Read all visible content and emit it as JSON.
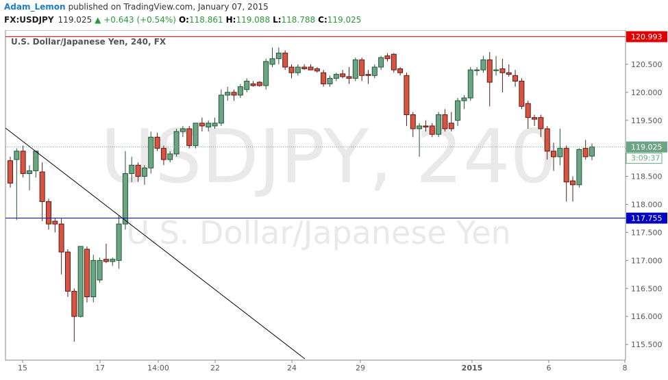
{
  "header": {
    "author": "Adam_Lemon",
    "published": "published on TradingView.com, January 07, 2015",
    "symbol": "FX:USDJPY",
    "last": "119.025",
    "change": "▲ +0.643 (+0.54%)",
    "o_label": "O:",
    "o": "118.861",
    "h_label": "H:",
    "h": "119.088",
    "l_label": "L:",
    "l": "118.788",
    "c_label": "C:",
    "c": "119.025"
  },
  "chart_data": {
    "type": "candlestick",
    "title": "U.S. Dollar/Japanese Yen, 240, FX",
    "watermark": "USDJPY, 240",
    "watermark_sub": "U.S. Dollar/Japanese Yen",
    "up_color": "#6ba583",
    "up_border": "#225437",
    "down_color": "#d75442",
    "down_border": "#5b1a13",
    "series": {
      "open": [
        118.78,
        118.8,
        118.95,
        118.55,
        118.6,
        118.58,
        118.05,
        117.7,
        117.65,
        117.15,
        116.45,
        116.0,
        117.2,
        116.35,
        116.65,
        117.02,
        116.98,
        117.0,
        117.65,
        118.55,
        118.7,
        118.5,
        118.65,
        119.2,
        119.0,
        118.8,
        118.9,
        119.3,
        119.35,
        119.05,
        119.45,
        119.38,
        119.4,
        119.45,
        119.95,
        120.0,
        119.95,
        120.05,
        120.15,
        120.18,
        120.12,
        120.5,
        120.6,
        120.7,
        120.45,
        120.35,
        120.45,
        120.45,
        120.42,
        120.35,
        120.15,
        120.25,
        120.33,
        120.28,
        120.25,
        120.58,
        120.32,
        120.3,
        120.45,
        120.65,
        120.68,
        120.42,
        120.3,
        119.6,
        119.35,
        119.4,
        119.4,
        119.25,
        119.6,
        119.45,
        119.5,
        119.85,
        119.9,
        120.4,
        120.4,
        120.58,
        120.4,
        120.42,
        120.35,
        120.3,
        120.2,
        119.8,
        119.55,
        119.55,
        119.35,
        118.95,
        118.85,
        119.0,
        118.42,
        118.35,
        119.0,
        118.861
      ],
      "high": [
        118.85,
        119.0,
        119.05,
        118.7,
        118.95,
        118.75,
        118.1,
        117.75,
        117.75,
        117.2,
        116.5,
        117.25,
        117.25,
        117.1,
        117.05,
        117.3,
        117.05,
        117.8,
        118.95,
        118.85,
        118.75,
        118.7,
        119.3,
        119.28,
        119.05,
        118.95,
        119.35,
        119.4,
        119.4,
        119.45,
        119.55,
        119.5,
        119.55,
        120.05,
        120.1,
        120.05,
        120.15,
        120.25,
        120.2,
        120.2,
        120.6,
        120.8,
        120.8,
        120.75,
        120.5,
        120.5,
        120.5,
        120.5,
        120.45,
        120.4,
        120.3,
        120.35,
        120.4,
        120.45,
        120.62,
        120.62,
        120.4,
        120.5,
        120.65,
        120.7,
        120.7,
        120.45,
        120.35,
        119.65,
        119.45,
        119.5,
        119.45,
        119.65,
        119.7,
        119.65,
        119.9,
        119.95,
        120.45,
        120.45,
        120.65,
        120.72,
        120.65,
        120.6,
        120.5,
        120.4,
        120.25,
        119.85,
        119.6,
        119.6,
        119.4,
        119.1,
        119.35,
        119.05,
        118.5,
        119.0,
        119.15,
        119.088
      ],
      "low": [
        118.3,
        117.72,
        118.48,
        118.25,
        118.48,
        117.7,
        117.55,
        117.5,
        116.75,
        116.35,
        115.55,
        115.98,
        116.25,
        116.25,
        116.6,
        116.95,
        116.9,
        116.85,
        117.55,
        118.4,
        118.4,
        118.35,
        118.55,
        118.95,
        118.7,
        118.75,
        118.85,
        119.2,
        119.0,
        119.0,
        119.3,
        119.3,
        119.35,
        119.4,
        119.85,
        119.85,
        119.9,
        120.0,
        120.1,
        120.1,
        120.05,
        120.45,
        120.5,
        120.4,
        120.25,
        120.3,
        120.4,
        120.4,
        120.35,
        120.1,
        120.1,
        120.2,
        120.25,
        120.15,
        120.2,
        120.2,
        120.15,
        120.25,
        120.4,
        120.55,
        120.35,
        120.3,
        119.4,
        119.2,
        118.85,
        119.3,
        119.2,
        119.2,
        119.3,
        119.3,
        119.4,
        119.7,
        119.85,
        120.3,
        120.35,
        119.75,
        120.3,
        120.0,
        120.28,
        120.1,
        119.7,
        119.35,
        119.4,
        119.2,
        118.8,
        118.6,
        118.7,
        118.05,
        118.05,
        118.3,
        118.8,
        118.788
      ],
      "close": [
        118.38,
        118.95,
        118.55,
        118.6,
        118.95,
        118.05,
        117.65,
        117.65,
        117.15,
        116.45,
        116.0,
        117.25,
        116.35,
        117.0,
        117.0,
        116.98,
        117.02,
        117.65,
        118.55,
        118.7,
        118.5,
        118.65,
        119.2,
        119.0,
        118.8,
        118.9,
        119.3,
        119.35,
        119.05,
        119.45,
        119.4,
        119.45,
        119.45,
        119.95,
        120.0,
        119.95,
        120.1,
        120.2,
        120.12,
        120.12,
        120.55,
        120.6,
        120.7,
        120.45,
        120.35,
        120.45,
        120.42,
        120.4,
        120.38,
        120.15,
        120.25,
        120.32,
        120.28,
        120.25,
        120.58,
        120.3,
        120.3,
        120.45,
        120.62,
        120.6,
        120.4,
        120.35,
        119.6,
        119.35,
        119.4,
        119.38,
        119.25,
        119.6,
        119.35,
        119.35,
        119.85,
        119.9,
        120.4,
        120.4,
        120.58,
        120.18,
        120.4,
        120.35,
        120.32,
        120.2,
        119.75,
        119.55,
        119.52,
        119.35,
        118.95,
        118.85,
        119.0,
        118.4,
        118.35,
        118.98,
        118.85,
        119.025
      ]
    },
    "xlim": [
      -0.75,
      96.25
    ],
    "ylim": [
      115.22,
      121.11
    ],
    "xticks": [
      {
        "value": 1.93,
        "label": "15"
      },
      {
        "value": 14.04,
        "label": "17"
      },
      {
        "value": 23.15,
        "label": "14:00"
      },
      {
        "value": 32.05,
        "label": "22"
      },
      {
        "value": 44.05,
        "label": "24"
      },
      {
        "value": 54.77,
        "label": "29"
      },
      {
        "value": 72.24,
        "label": "2015"
      },
      {
        "value": 84.24,
        "label": "6"
      },
      {
        "value": 96.14,
        "label": "8"
      }
    ],
    "yticks": [
      {
        "value": 115.5,
        "label": "115.500"
      },
      {
        "value": 116,
        "label": "116.000"
      },
      {
        "value": 116.5,
        "label": "116.500"
      },
      {
        "value": 117,
        "label": "117.000"
      },
      {
        "value": 117.5,
        "label": "117.500"
      },
      {
        "value": 118,
        "label": "118.000"
      },
      {
        "value": 118.5,
        "label": "118.500"
      },
      {
        "value": 119,
        "label": "119.000"
      },
      {
        "value": 119.5,
        "label": "119.500"
      },
      {
        "value": 120,
        "label": "120.000"
      },
      {
        "value": 120.5,
        "label": "120.500"
      }
    ],
    "levels": [
      {
        "value": 120.993,
        "label": "120.993",
        "color": "#e00000",
        "style": "solid"
      },
      {
        "value": 117.755,
        "label": "117.755",
        "color": "#0000c0",
        "style": "solid"
      },
      {
        "value": 119.025,
        "label": "119.025",
        "color": "#6ba583",
        "style": "dotted"
      }
    ],
    "countdown": "3:09:37",
    "trendline": {
      "x": [
        -0.75,
        46.09
      ],
      "y": [
        119.363,
        115.243
      ],
      "color": "#000000"
    }
  }
}
